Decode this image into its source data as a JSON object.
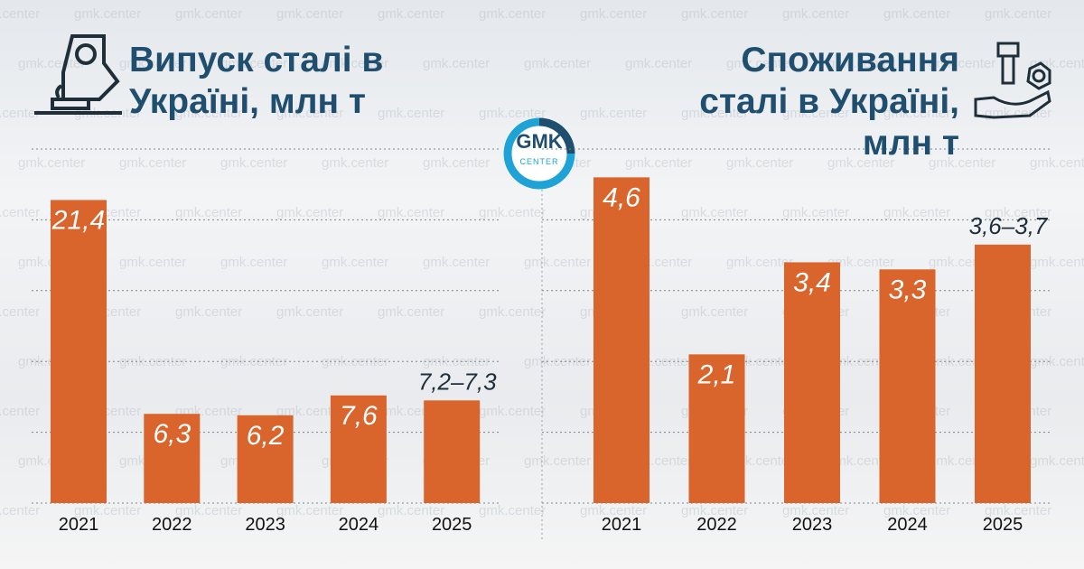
{
  "logo": {
    "top": "GMK",
    "bottom": "CENTER"
  },
  "watermark": "gmk.center",
  "chart_data": [
    {
      "type": "bar",
      "title": "Випуск сталі в Україні, млн т",
      "categories": [
        "2021",
        "2022",
        "2023",
        "2024",
        "2025"
      ],
      "values": [
        21.4,
        6.3,
        6.2,
        7.6,
        7.25
      ],
      "value_labels": [
        "21,4",
        "6,3",
        "6,2",
        "7,6",
        "7,2–7,3"
      ],
      "color": "#d9642c",
      "ylim": [
        0,
        25
      ],
      "yticks": [
        0,
        5,
        10,
        15,
        20,
        25
      ],
      "grid": true
    },
    {
      "type": "bar",
      "title": "Споживання сталі в Україні, млн т",
      "categories": [
        "2021",
        "2022",
        "2023",
        "2024",
        "2025"
      ],
      "values": [
        4.6,
        2.1,
        3.4,
        3.3,
        3.65
      ],
      "value_labels": [
        "4,6",
        "2,1",
        "3,4",
        "3,3",
        "3,6–3,7"
      ],
      "color": "#d9642c",
      "ylim": [
        0,
        5
      ],
      "yticks": [
        0,
        1,
        2,
        3,
        4,
        5
      ],
      "grid": true
    }
  ]
}
